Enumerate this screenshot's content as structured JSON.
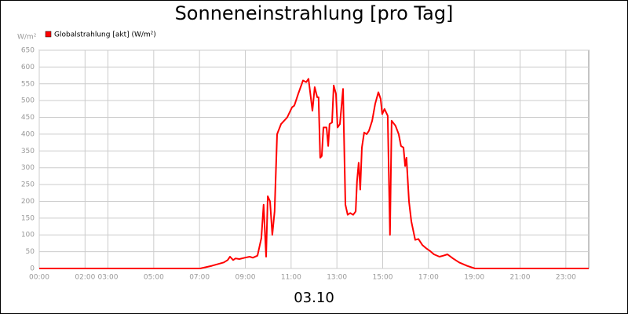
{
  "chart_data": {
    "type": "line",
    "title": "Sonneneinstrahlung [pro Tag]",
    "y_unit": "W/m²",
    "footer": "03.10",
    "x": [
      0,
      7.03,
      7.54,
      8.06,
      8.23,
      8.33,
      8.47,
      8.57,
      8.74,
      8.98,
      9.19,
      9.33,
      9.53,
      9.7,
      9.8,
      9.91,
      9.98,
      10.08,
      10.18,
      10.28,
      10.39,
      10.56,
      10.83,
      11.04,
      11.14,
      11.31,
      11.52,
      11.66,
      11.76,
      11.93,
      12.03,
      12.14,
      12.2,
      12.27,
      12.34,
      12.41,
      12.55,
      12.62,
      12.68,
      12.79,
      12.86,
      12.96,
      13.03,
      13.13,
      13.27,
      13.37,
      13.47,
      13.58,
      13.71,
      13.82,
      13.88,
      13.95,
      14.02,
      14.09,
      14.19,
      14.3,
      14.4,
      14.54,
      14.67,
      14.81,
      14.91,
      14.98,
      15.08,
      15.22,
      15.32,
      15.39,
      15.56,
      15.7,
      15.8,
      15.91,
      15.98,
      16.04,
      16.15,
      16.25,
      16.42,
      16.56,
      16.73,
      16.9,
      17.07,
      17.24,
      17.48,
      17.65,
      17.83,
      18.07,
      18.34,
      18.68,
      19.03,
      24
    ],
    "series": [
      {
        "name": "Globalstrahlung [akt] (W/m²)",
        "color": "#ff0000",
        "values": [
          0,
          0,
          8,
          18,
          25,
          35,
          25,
          30,
          28,
          32,
          35,
          32,
          38,
          90,
          190,
          35,
          215,
          200,
          100,
          170,
          400,
          430,
          450,
          480,
          485,
          520,
          560,
          555,
          565,
          470,
          540,
          510,
          510,
          330,
          335,
          420,
          420,
          365,
          430,
          435,
          545,
          520,
          420,
          430,
          535,
          190,
          160,
          165,
          160,
          170,
          260,
          315,
          235,
          360,
          405,
          400,
          410,
          440,
          490,
          525,
          505,
          460,
          475,
          455,
          100,
          440,
          425,
          400,
          365,
          360,
          305,
          330,
          200,
          140,
          85,
          88,
          70,
          60,
          52,
          42,
          35,
          38,
          42,
          30,
          18,
          8,
          0,
          0
        ]
      }
    ],
    "xlim": [
      0,
      24
    ],
    "xticks": [
      {
        "value": 0,
        "label": "00:00"
      },
      {
        "value": 2,
        "label": "02:00"
      },
      {
        "value": 3,
        "label": "03:00"
      },
      {
        "value": 5,
        "label": "05:00"
      },
      {
        "value": 7,
        "label": "07:00"
      },
      {
        "value": 9,
        "label": "09:00"
      },
      {
        "value": 11,
        "label": "11:00"
      },
      {
        "value": 13,
        "label": "13:00"
      },
      {
        "value": 15,
        "label": "15:00"
      },
      {
        "value": 17,
        "label": "17:00"
      },
      {
        "value": 19,
        "label": "19:00"
      },
      {
        "value": 21,
        "label": "21:00"
      },
      {
        "value": 23,
        "label": "23:00"
      }
    ],
    "ylim": [
      0,
      650
    ],
    "yticks": [
      0,
      50,
      100,
      150,
      200,
      250,
      300,
      350,
      400,
      450,
      500,
      550,
      600,
      650
    ],
    "grid": true
  }
}
